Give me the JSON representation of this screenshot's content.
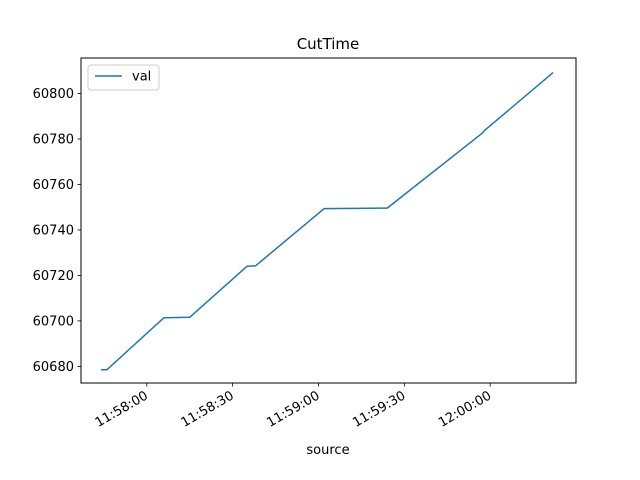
{
  "chart_data": {
    "type": "line",
    "title": "CutTime",
    "xlabel": "source",
    "ylabel": "",
    "x_ticks": [
      "11:58:00",
      "11:58:30",
      "11:59:00",
      "11:59:30",
      "12:00:00"
    ],
    "y_ticks": [
      60680,
      60700,
      60720,
      60740,
      60760,
      60780,
      60800
    ],
    "xlim": [
      "11:57:37",
      "12:00:30"
    ],
    "ylim": [
      60672.7,
      60815.6
    ],
    "legend_position": "upper-left",
    "grid": false,
    "series": [
      {
        "name": "val",
        "color": "#1f77b4",
        "points": [
          {
            "x": "11:57:44",
            "y": 60678.5
          },
          {
            "x": "11:57:46",
            "y": 60678.5
          },
          {
            "x": "11:58:06",
            "y": 60701.4
          },
          {
            "x": "11:58:15",
            "y": 60701.6
          },
          {
            "x": "11:58:35",
            "y": 60724.0
          },
          {
            "x": "11:58:38",
            "y": 60724.2
          },
          {
            "x": "11:59:02",
            "y": 60749.4
          },
          {
            "x": "11:59:24",
            "y": 60749.6
          },
          {
            "x": "11:59:57",
            "y": 60782.3
          },
          {
            "x": "11:59:58",
            "y": 60783.7
          },
          {
            "x": "12:00:22",
            "y": 60809.2
          }
        ]
      }
    ]
  }
}
